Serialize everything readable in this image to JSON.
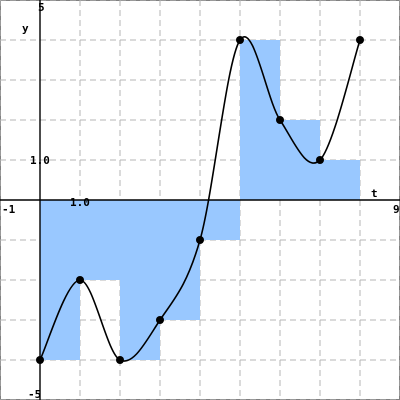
{
  "chart_data": {
    "type": "line",
    "title": "",
    "xlabel": "t",
    "ylabel": "y",
    "xlim": [
      -1,
      9
    ],
    "ylim": [
      -5,
      5
    ],
    "grid": true,
    "tick_labels": {
      "x_min": "-1",
      "x_max": "9",
      "y_min": "-5",
      "y_max": "5",
      "x_unit": "1.0",
      "y_unit": "1.0"
    },
    "curve_points": [
      {
        "x": 0,
        "y": -4
      },
      {
        "x": 1,
        "y": -2
      },
      {
        "x": 2,
        "y": -4
      },
      {
        "x": 3,
        "y": -3
      },
      {
        "x": 4,
        "y": -1
      },
      {
        "x": 5,
        "y": 4
      },
      {
        "x": 6,
        "y": 2
      },
      {
        "x": 7,
        "y": 1
      },
      {
        "x": 8,
        "y": 4
      }
    ],
    "step_bars": [
      {
        "x0": 0,
        "x1": 1,
        "y": -4
      },
      {
        "x0": 1,
        "x1": 2,
        "y": -2
      },
      {
        "x0": 2,
        "x1": 3,
        "y": -4
      },
      {
        "x0": 3,
        "x1": 4,
        "y": -3
      },
      {
        "x0": 4,
        "x1": 5,
        "y": -1
      },
      {
        "x0": 5,
        "x1": 6,
        "y": 4
      },
      {
        "x0": 6,
        "x1": 7,
        "y": 2
      },
      {
        "x0": 7,
        "x1": 8,
        "y": 1
      }
    ],
    "colors": {
      "bar_fill": "#99c8ff",
      "curve": "#000000",
      "grid": "#b4b4b4",
      "axis": "#000000"
    }
  }
}
